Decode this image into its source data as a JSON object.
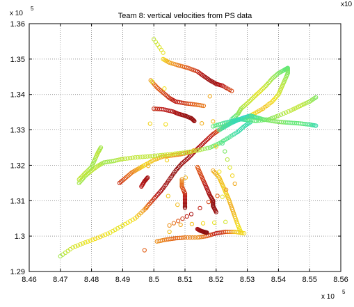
{
  "chart_data": {
    "type": "scatter",
    "title": "Team 8: vertical velocities from PS data",
    "xlabel": "",
    "ylabel": "",
    "x_exponent_label": "x 10",
    "x_exponent": "5",
    "y_exponent_label": "x 10",
    "y_exponent": "5",
    "top_right_label": "x10",
    "xlim": [
      8.46,
      8.56
    ],
    "ylim": [
      1.29,
      1.36
    ],
    "x_ticks": [
      "8.46",
      "8.47",
      "8.48",
      "8.49",
      "8.5",
      "8.51",
      "8.52",
      "8.53",
      "8.54",
      "8.55",
      "8.56"
    ],
    "y_ticks": [
      "1.29",
      "1.3",
      "1.31",
      "1.32",
      "1.33",
      "1.34",
      "1.35",
      "1.36"
    ],
    "grid": true,
    "marker": "open-circle",
    "colormap": [
      "#2ad4c8",
      "#5ee87a",
      "#b9e63c",
      "#f2e21e",
      "#f0a020",
      "#e05a18",
      "#b81414",
      "#8a1010"
    ],
    "tracks": [
      {
        "points": [
          [
            8.47,
            1.2943
          ],
          [
            8.474,
            1.2968
          ],
          [
            8.478,
            1.2982
          ],
          [
            8.482,
            1.2995
          ],
          [
            8.486,
            1.301
          ],
          [
            8.49,
            1.303
          ],
          [
            8.494,
            1.305
          ],
          [
            8.497,
            1.3075
          ],
          [
            8.499,
            1.3095
          ],
          [
            8.501,
            1.3115
          ],
          [
            8.503,
            1.3135
          ],
          [
            8.505,
            1.316
          ],
          [
            8.507,
            1.3185
          ],
          [
            8.509,
            1.3205
          ],
          [
            8.511,
            1.322
          ],
          [
            8.513,
            1.3238
          ],
          [
            8.515,
            1.3255
          ],
          [
            8.517,
            1.3272
          ],
          [
            8.519,
            1.3288
          ],
          [
            8.521,
            1.33
          ],
          [
            8.523,
            1.3312
          ],
          [
            8.525,
            1.3322
          ],
          [
            8.527,
            1.333
          ]
        ],
        "values": [
          0.25,
          0.35,
          0.4,
          0.45,
          0.4,
          0.4,
          0.45,
          0.6,
          0.75,
          0.85,
          0.92,
          0.95,
          0.98,
          0.95,
          0.92,
          0.9,
          0.88,
          0.85,
          0.82,
          0.7,
          0.4,
          0.15,
          0.05
        ]
      },
      {
        "points": [
          [
            8.489,
            1.315
          ],
          [
            8.491,
            1.3165
          ],
          [
            8.493,
            1.318
          ],
          [
            8.495,
            1.319
          ],
          [
            8.497,
            1.32
          ],
          [
            8.5,
            1.3215
          ],
          [
            8.503,
            1.3225
          ],
          [
            8.506,
            1.3228
          ],
          [
            8.509,
            1.3232
          ],
          [
            8.512,
            1.3238
          ]
        ],
        "values": [
          0.8,
          0.72,
          0.65,
          0.55,
          0.45,
          0.5,
          0.55,
          0.6,
          0.62,
          0.65
        ]
      },
      {
        "points": [
          [
            8.476,
            1.315
          ],
          [
            8.478,
            1.317
          ],
          [
            8.48,
            1.3185
          ],
          [
            8.482,
            1.3198
          ],
          [
            8.484,
            1.3208
          ],
          [
            8.487,
            1.3212
          ],
          [
            8.49,
            1.3218
          ],
          [
            8.494,
            1.3222
          ],
          [
            8.498,
            1.3225
          ],
          [
            8.502,
            1.3228
          ],
          [
            8.506,
            1.3232
          ],
          [
            8.51,
            1.3236
          ],
          [
            8.514,
            1.3242
          ],
          [
            8.518,
            1.325
          ],
          [
            8.521,
            1.3262
          ],
          [
            8.524,
            1.3278
          ],
          [
            8.527,
            1.3295
          ],
          [
            8.529,
            1.331
          ],
          [
            8.531,
            1.3322
          ]
        ],
        "values": [
          0.25,
          0.25,
          0.3,
          0.3,
          0.25,
          0.25,
          0.3,
          0.3,
          0.3,
          0.3,
          0.35,
          0.3,
          0.3,
          0.2,
          0.15,
          0.1,
          0.05,
          0.05,
          0.05
        ]
      },
      {
        "points": [
          [
            8.5,
            1.336
          ],
          [
            8.503,
            1.3358
          ],
          [
            8.506,
            1.3352
          ],
          [
            8.508,
            1.3345
          ],
          [
            8.51,
            1.334
          ],
          [
            8.512,
            1.3333
          ],
          [
            8.513,
            1.3325
          ]
        ],
        "values": [
          0.8,
          0.85,
          0.88,
          0.92,
          0.96,
          0.98,
          0.95
        ]
      },
      {
        "points": [
          [
            8.503,
            1.35
          ],
          [
            8.505,
            1.349
          ],
          [
            8.508,
            1.3482
          ],
          [
            8.511,
            1.3475
          ],
          [
            8.514,
            1.3465
          ],
          [
            8.516,
            1.3452
          ],
          [
            8.518,
            1.344
          ],
          [
            8.52,
            1.343
          ],
          [
            8.522,
            1.3425
          ],
          [
            8.525,
            1.341
          ]
        ],
        "values": [
          0.45,
          0.55,
          0.65,
          0.72,
          0.8,
          0.9,
          0.95,
          0.92,
          0.85,
          0.75
        ]
      },
      {
        "points": [
          [
            8.499,
            1.344
          ],
          [
            8.501,
            1.342
          ],
          [
            8.503,
            1.3405
          ],
          [
            8.505,
            1.339
          ],
          [
            8.507,
            1.338
          ],
          [
            8.51,
            1.3375
          ],
          [
            8.513,
            1.3372
          ],
          [
            8.516,
            1.3368
          ]
        ],
        "values": [
          0.6,
          0.7,
          0.75,
          0.8,
          0.85,
          0.78,
          0.7,
          0.65
        ]
      },
      {
        "points": [
          [
            8.525,
            1.333
          ],
          [
            8.527,
            1.3345
          ],
          [
            8.528,
            1.336
          ],
          [
            8.53,
            1.3375
          ],
          [
            8.532,
            1.3392
          ],
          [
            8.534,
            1.3408
          ],
          [
            8.536,
            1.3425
          ],
          [
            8.538,
            1.3445
          ],
          [
            8.54,
            1.346
          ],
          [
            8.542,
            1.347
          ],
          [
            8.543,
            1.3475
          ],
          [
            8.543,
            1.346
          ],
          [
            8.542,
            1.344
          ],
          [
            8.541,
            1.342
          ],
          [
            8.54,
            1.34
          ],
          [
            8.538,
            1.338
          ],
          [
            8.535,
            1.336
          ],
          [
            8.532,
            1.3345
          ],
          [
            8.53,
            1.3335
          ]
        ],
        "values": [
          0.1,
          0.2,
          0.25,
          0.3,
          0.35,
          0.4,
          0.3,
          0.25,
          0.2,
          0.15,
          0.15,
          0.2,
          0.25,
          0.3,
          0.35,
          0.45,
          0.5,
          0.45,
          0.3
        ]
      },
      {
        "points": [
          [
            8.521,
            1.33
          ],
          [
            8.523,
            1.331
          ],
          [
            8.525,
            1.332
          ],
          [
            8.527,
            1.3328
          ],
          [
            8.529,
            1.3335
          ],
          [
            8.531,
            1.334
          ],
          [
            8.533,
            1.3335
          ],
          [
            8.535,
            1.333
          ],
          [
            8.538,
            1.3325
          ],
          [
            8.541,
            1.3322
          ],
          [
            8.544,
            1.332
          ],
          [
            8.547,
            1.3318
          ],
          [
            8.55,
            1.3315
          ],
          [
            8.552,
            1.3312
          ]
        ],
        "values": [
          0.1,
          0.05,
          0.05,
          0.0,
          0.0,
          0.05,
          0.1,
          0.15,
          0.2,
          0.2,
          0.15,
          0.15,
          0.1,
          0.05
        ]
      },
      {
        "points": [
          [
            8.519,
            1.331
          ],
          [
            8.522,
            1.3318
          ],
          [
            8.525,
            1.3325
          ],
          [
            8.528,
            1.333
          ],
          [
            8.53,
            1.3328
          ],
          [
            8.533,
            1.3325
          ],
          [
            8.537,
            1.333
          ],
          [
            8.54,
            1.334
          ],
          [
            8.544,
            1.3355
          ],
          [
            8.547,
            1.3368
          ],
          [
            8.55,
            1.338
          ],
          [
            8.552,
            1.3392
          ]
        ],
        "values": [
          0.15,
          0.1,
          0.05,
          0.05,
          0.1,
          0.15,
          0.2,
          0.25,
          0.3,
          0.3,
          0.25,
          0.2
        ]
      },
      {
        "points": [
          [
            8.514,
            1.3195
          ],
          [
            8.515,
            1.3175
          ],
          [
            8.516,
            1.3155
          ],
          [
            8.517,
            1.3135
          ],
          [
            8.518,
            1.3115
          ],
          [
            8.519,
            1.31
          ],
          [
            8.519,
            1.3085
          ],
          [
            8.52,
            1.3068
          ]
        ],
        "values": [
          0.7,
          0.75,
          0.8,
          0.88,
          0.92,
          0.96,
          0.98,
          0.95
        ]
      },
      {
        "points": [
          [
            8.519,
            1.3185
          ],
          [
            8.521,
            1.3165
          ],
          [
            8.522,
            1.3145
          ],
          [
            8.523,
            1.3125
          ],
          [
            8.524,
            1.3105
          ],
          [
            8.525,
            1.308
          ],
          [
            8.526,
            1.3055
          ],
          [
            8.527,
            1.303
          ],
          [
            8.528,
            1.301
          ]
        ],
        "values": [
          0.55,
          0.5,
          0.5,
          0.45,
          0.5,
          0.55,
          0.5,
          0.45,
          0.4
        ]
      },
      {
        "points": [
          [
            8.509,
            1.316
          ],
          [
            8.509,
            1.314
          ],
          [
            8.51,
            1.312
          ],
          [
            8.51,
            1.31
          ],
          [
            8.51,
            1.308
          ]
        ],
        "values": [
          0.6,
          0.7,
          0.8,
          0.9,
          0.98
        ]
      },
      {
        "points": [
          [
            8.501,
            1.2985
          ],
          [
            8.504,
            1.299
          ],
          [
            8.507,
            1.2994
          ],
          [
            8.51,
            1.2996
          ],
          [
            8.514,
            1.2996
          ],
          [
            8.517,
            1.3
          ],
          [
            8.52,
            1.3008
          ],
          [
            8.523,
            1.3012
          ],
          [
            8.526,
            1.3012
          ],
          [
            8.529,
            1.3008
          ]
        ],
        "values": [
          0.6,
          0.65,
          0.7,
          0.65,
          0.6,
          0.7,
          0.85,
          0.75,
          0.5,
          0.45
        ]
      },
      {
        "points": [
          [
            8.514,
            1.302
          ],
          [
            8.515,
            1.3015
          ],
          [
            8.516,
            1.3012
          ],
          [
            8.517,
            1.301
          ]
        ],
        "values": [
          0.9,
          0.95,
          0.98,
          1.0
        ]
      },
      {
        "points": [
          [
            8.476,
            1.316
          ],
          [
            8.478,
            1.3178
          ],
          [
            8.48,
            1.3195
          ],
          [
            8.481,
            1.3215
          ],
          [
            8.482,
            1.3235
          ],
          [
            8.483,
            1.325
          ]
        ],
        "values": [
          0.3,
          0.3,
          0.25,
          0.25,
          0.3,
          0.25
        ]
      },
      {
        "points": [
          [
            8.496,
            1.314
          ],
          [
            8.497,
            1.3155
          ],
          [
            8.498,
            1.3165
          ]
        ],
        "values": [
          0.85,
          0.9,
          0.92
        ]
      },
      {
        "points": [
          [
            8.497,
            1.296
          ],
          [
            8.5,
            1.3556
          ],
          [
            8.503,
            1.3518
          ],
          [
            8.505,
            1.3012
          ],
          [
            8.518,
            1.3395
          ],
          [
            8.523,
            1.304
          ],
          [
            8.505,
            1.303
          ],
          [
            8.512,
            1.3062
          ],
          [
            8.526,
            1.3148
          ],
          [
            8.522,
            1.3262
          ]
        ],
        "values": [
          0.7,
          0.3,
          0.4,
          0.5,
          0.55,
          0.35,
          0.6,
          0.9,
          0.55,
          0.1
        ]
      }
    ]
  }
}
